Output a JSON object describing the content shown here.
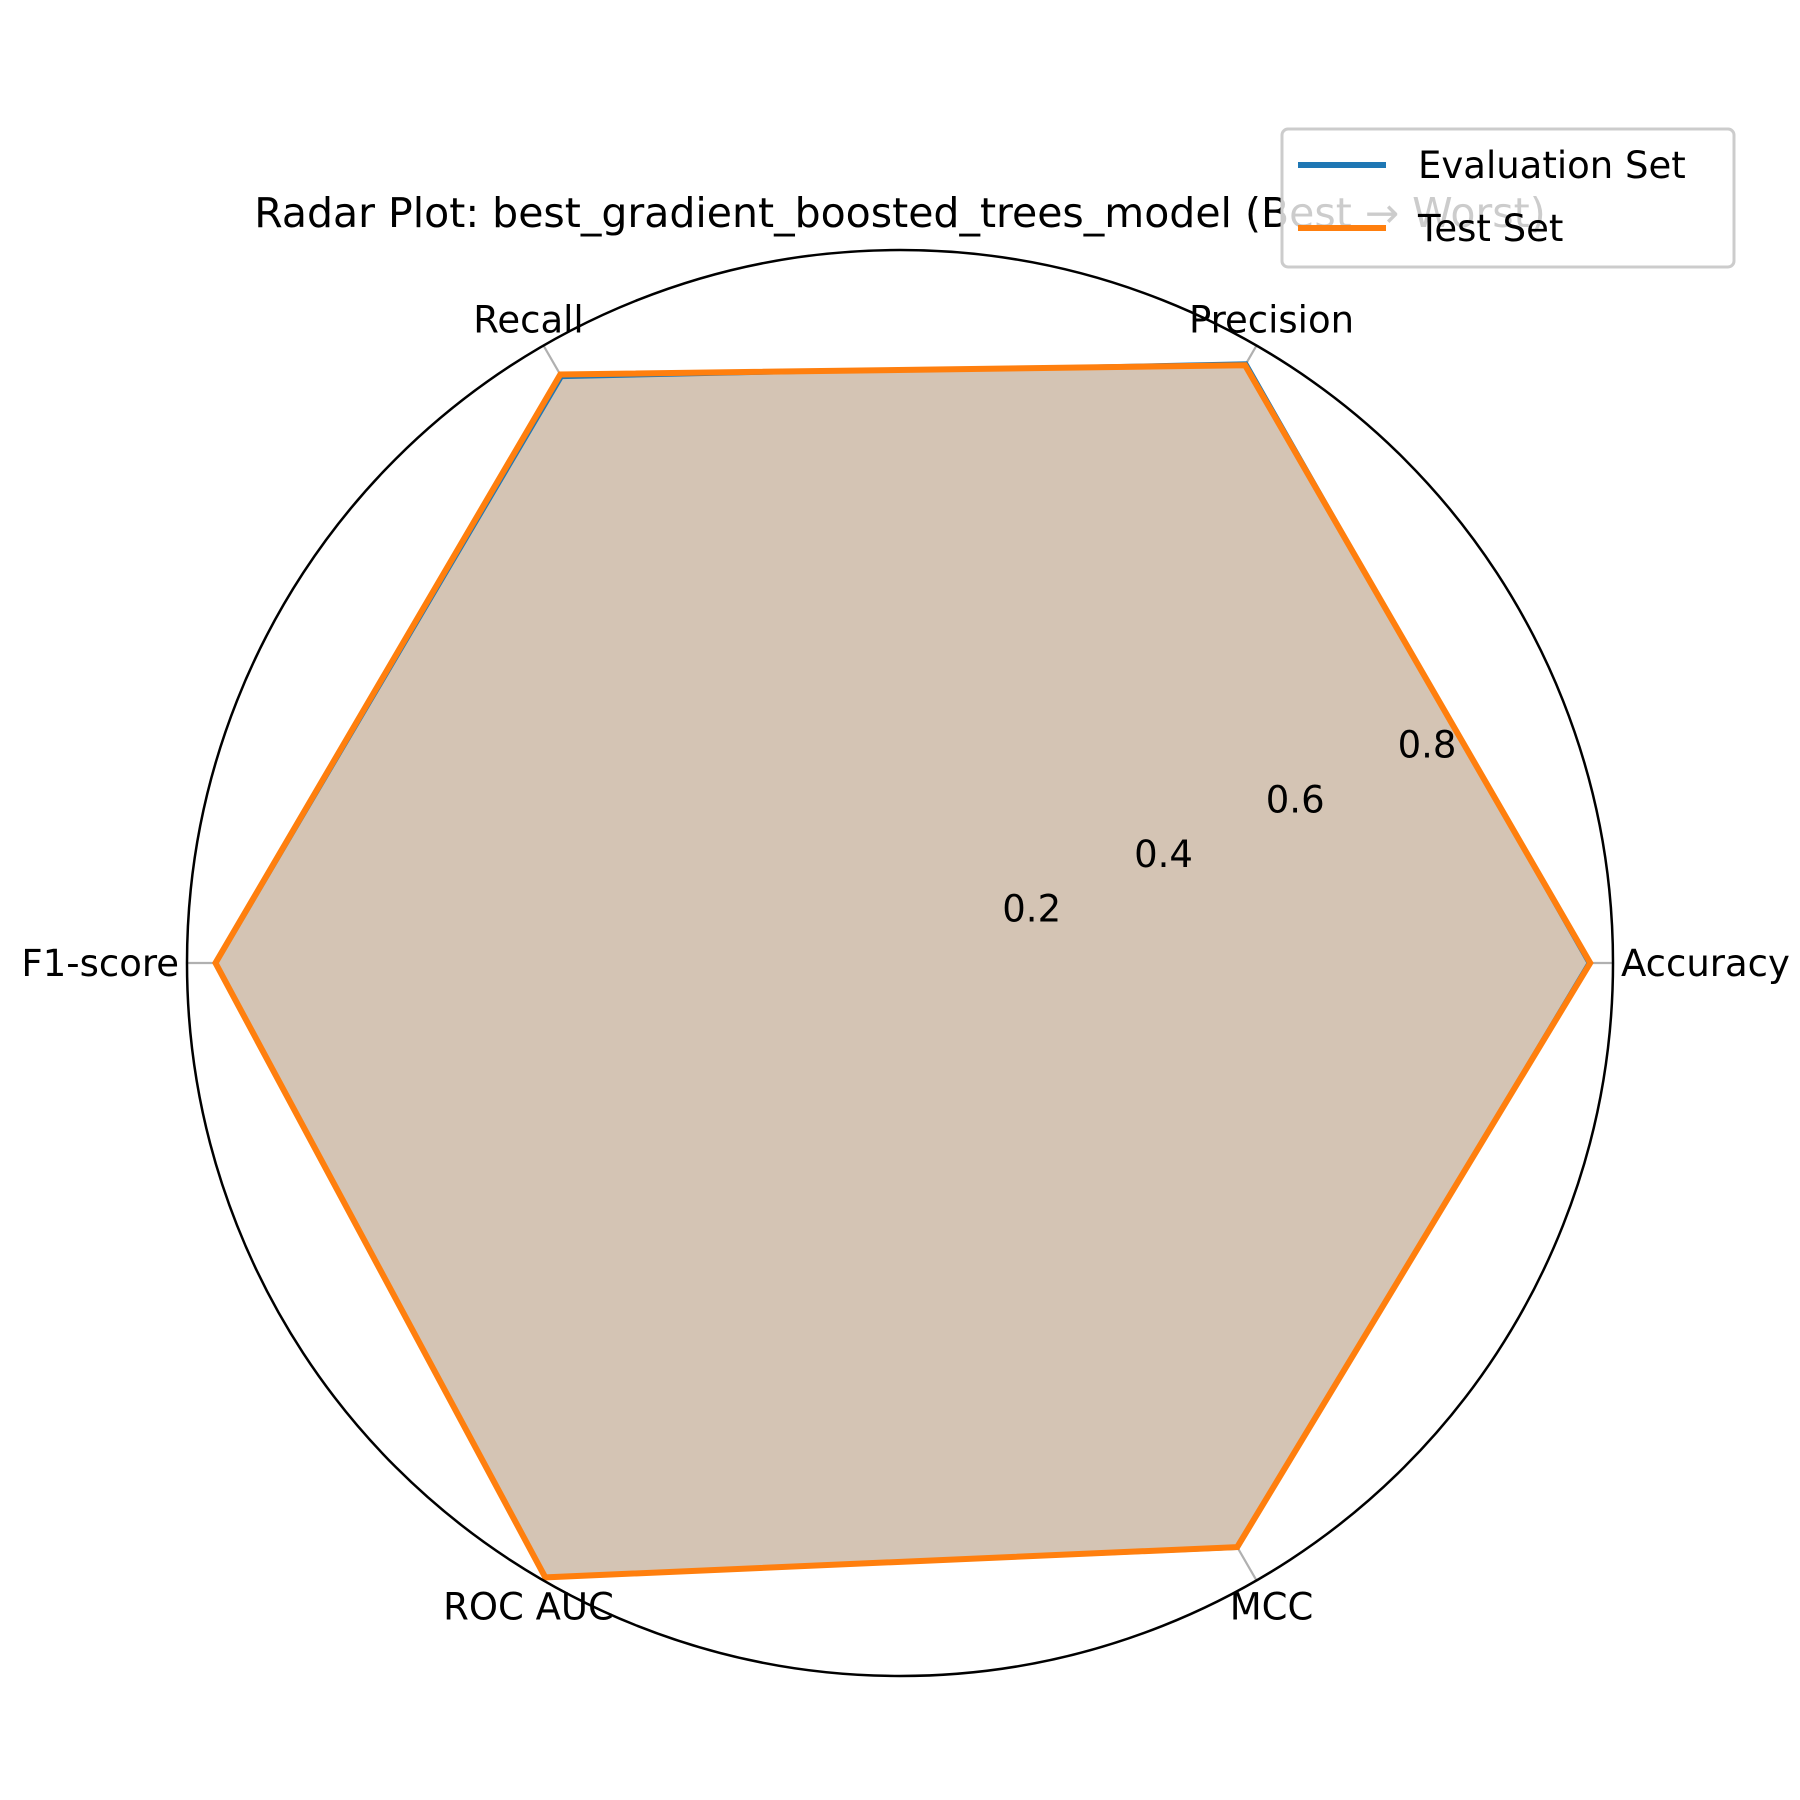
{
  "chart_data": {
    "type": "radar",
    "title": "Radar Plot: best_gradient_boosted_trees_model (Best → Worst)",
    "categories": [
      "Accuracy",
      "Precision",
      "Recall",
      "F1-score",
      "ROC AUC",
      "MCC"
    ],
    "r_ticks": [
      0.2,
      0.4,
      0.6,
      0.8
    ],
    "r_tick_labels": [
      "0.2",
      "0.4",
      "0.6",
      "0.8"
    ],
    "rlim": [
      0,
      1.0
    ],
    "grid": true,
    "legend_position": "top-right",
    "series": [
      {
        "name": "Evaluation Set",
        "color": "#1f77b4",
        "values": [
          0.965,
          0.972,
          0.948,
          0.958,
          0.995,
          0.948
        ]
      },
      {
        "name": "Test Set",
        "color": "#ff7f0e",
        "values": [
          0.968,
          0.968,
          0.953,
          0.96,
          0.995,
          0.946
        ]
      }
    ],
    "fill_color": "#d4c4b4"
  }
}
